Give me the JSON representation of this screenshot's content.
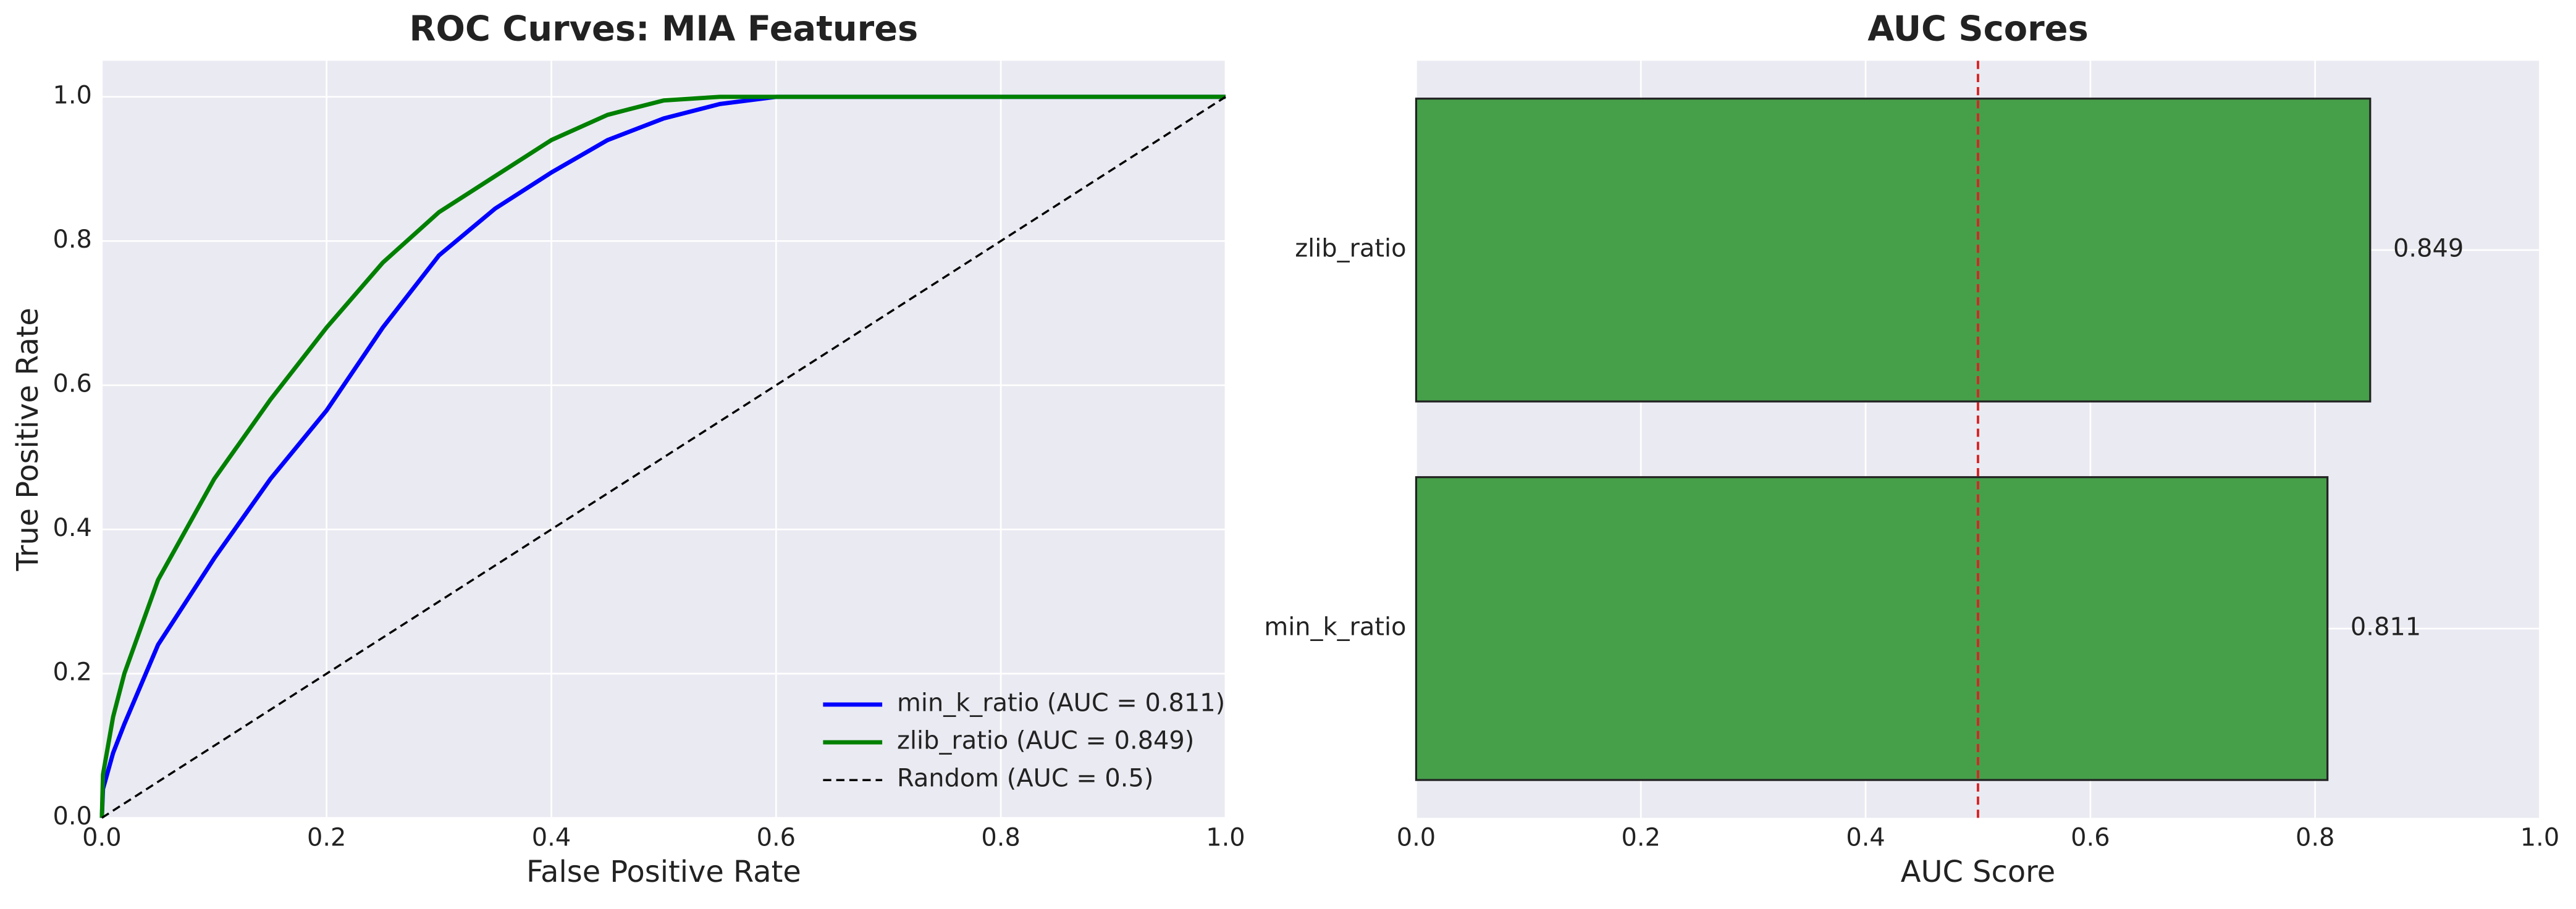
{
  "chart_data": [
    {
      "type": "line",
      "title": "ROC Curves: MIA Features",
      "xlabel": "False Positive Rate",
      "ylabel": "True Positive Rate",
      "xlim": [
        0,
        1
      ],
      "ylim": [
        0,
        1.05
      ],
      "xticks": [
        {
          "value": 0,
          "label": "0.0"
        },
        0.2,
        0.4,
        0.6,
        0.8,
        {
          "value": 1,
          "label": "1.0"
        }
      ],
      "yticks": [
        {
          "value": 0,
          "label": "0.0"
        },
        0.2,
        0.4,
        0.6,
        0.8,
        {
          "value": 1,
          "label": "1.0"
        }
      ],
      "grid": true,
      "legend": "lower right",
      "series": [
        {
          "name": "min_k_ratio (AUC = 0.811)",
          "color": "#0000ff",
          "dash": "solid",
          "x": [
            0,
            0.001,
            0.01,
            0.02,
            0.05,
            0.1,
            0.15,
            0.2,
            0.25,
            0.3,
            0.35,
            0.4,
            0.45,
            0.5,
            0.55,
            0.6,
            0.7,
            0.8,
            0.9,
            1
          ],
          "values": [
            0,
            0.04,
            0.09,
            0.13,
            0.24,
            0.36,
            0.47,
            0.565,
            0.68,
            0.78,
            0.845,
            0.895,
            0.94,
            0.97,
            0.99,
            1,
            1,
            1,
            1,
            1
          ]
        },
        {
          "name": "zlib_ratio (AUC = 0.849)",
          "color": "#008000",
          "dash": "solid",
          "x": [
            0,
            0.001,
            0.01,
            0.02,
            0.05,
            0.1,
            0.15,
            0.2,
            0.25,
            0.3,
            0.35,
            0.4,
            0.45,
            0.5,
            0.55,
            0.6,
            0.7,
            0.8,
            0.9,
            1
          ],
          "values": [
            0,
            0.06,
            0.14,
            0.2,
            0.33,
            0.47,
            0.58,
            0.68,
            0.77,
            0.84,
            0.89,
            0.94,
            0.975,
            0.995,
            1,
            1,
            1,
            1,
            1,
            1
          ]
        },
        {
          "name": "Random (AUC = 0.5)",
          "color": "#000000",
          "dash": "dashed",
          "x": [
            0,
            1
          ],
          "values": [
            0,
            1
          ]
        }
      ]
    },
    {
      "type": "barh",
      "title": "AUC Scores",
      "xlabel": "AUC Score",
      "xlim": [
        0,
        1
      ],
      "xticks": [
        {
          "value": 0,
          "label": "0.0"
        },
        0.2,
        0.4,
        0.6,
        0.8,
        {
          "value": 1,
          "label": "1.0"
        }
      ],
      "grid": true,
      "color": "#46a04a",
      "categories": [
        "min_k_ratio",
        "zlib_ratio"
      ],
      "values": [
        0.811,
        0.849
      ],
      "reference_line": 0.5,
      "reference_color": "#d62728"
    }
  ]
}
